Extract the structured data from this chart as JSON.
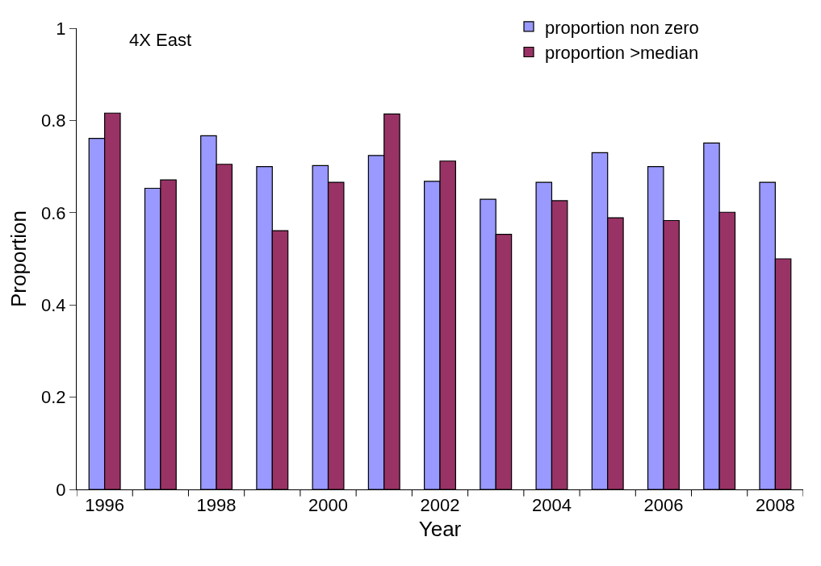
{
  "chart_data": {
    "type": "bar",
    "title": "4X East",
    "xlabel": "Year",
    "ylabel": "Proportion",
    "categories": [
      "1996",
      null,
      "1998",
      null,
      "2000",
      null,
      "2002",
      null,
      "2004",
      null,
      "2006",
      null,
      "2008"
    ],
    "series": [
      {
        "name": "proportion non zero",
        "color": "#9999ff",
        "values": [
          0.761,
          0.653,
          0.767,
          0.7,
          0.702,
          0.724,
          0.668,
          0.629,
          0.666,
          0.73,
          0.7,
          0.751,
          0.666
        ]
      },
      {
        "name": "proportion >median",
        "color": "#993366",
        "values": [
          0.816,
          0.671,
          0.705,
          0.561,
          0.666,
          0.814,
          0.712,
          0.553,
          0.626,
          0.589,
          0.583,
          0.601,
          0.5
        ]
      }
    ],
    "ylim": [
      0,
      1
    ],
    "yticks": [
      0,
      0.2,
      0.4,
      0.6,
      0.8,
      1
    ],
    "legend": "top right"
  }
}
